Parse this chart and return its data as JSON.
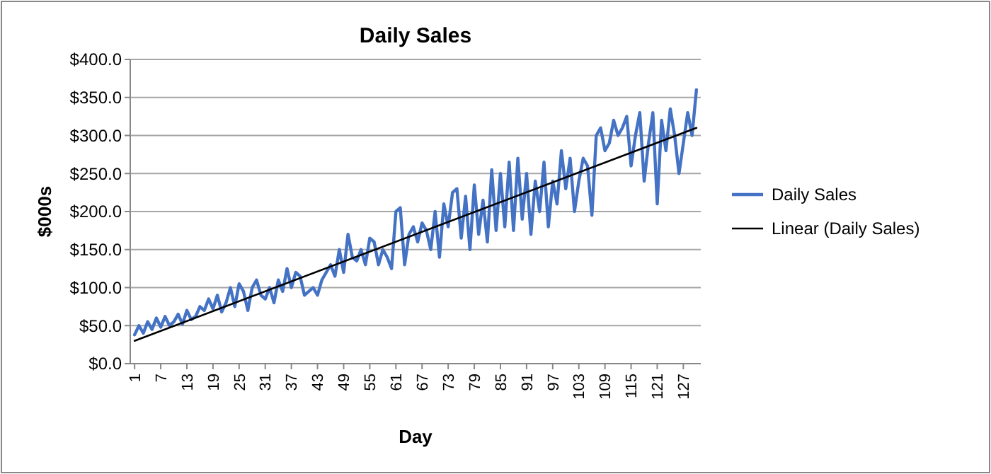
{
  "chart_data": {
    "type": "line",
    "title": "Daily Sales",
    "xlabel": "Day",
    "ylabel": "$000s",
    "x": [
      1,
      2,
      3,
      4,
      5,
      6,
      7,
      8,
      9,
      10,
      11,
      12,
      13,
      14,
      15,
      16,
      17,
      18,
      19,
      20,
      21,
      22,
      23,
      24,
      25,
      26,
      27,
      28,
      29,
      30,
      31,
      32,
      33,
      34,
      35,
      36,
      37,
      38,
      39,
      40,
      41,
      42,
      43,
      44,
      45,
      46,
      47,
      48,
      49,
      50,
      51,
      52,
      53,
      54,
      55,
      56,
      57,
      58,
      59,
      60,
      61,
      62,
      63,
      64,
      65,
      66,
      67,
      68,
      69,
      70,
      71,
      72,
      73,
      74,
      75,
      76,
      77,
      78,
      79,
      80,
      81,
      82,
      83,
      84,
      85,
      86,
      87,
      88,
      89,
      90,
      91,
      92,
      93,
      94,
      95,
      96,
      97,
      98,
      99,
      100,
      101,
      102,
      103,
      104,
      105,
      106,
      107,
      108,
      109,
      110,
      111,
      112,
      113,
      114,
      115,
      116,
      117,
      118,
      119,
      120,
      121,
      122,
      123,
      124,
      125,
      126,
      127,
      128,
      129,
      130
    ],
    "xlim": [
      0,
      131
    ],
    "xticks": [
      1,
      7,
      13,
      19,
      25,
      31,
      37,
      43,
      49,
      55,
      61,
      67,
      73,
      79,
      85,
      91,
      97,
      103,
      109,
      115,
      121,
      127
    ],
    "ylim": [
      0,
      400
    ],
    "yticks": [
      {
        "value": 0,
        "label": "$0.0"
      },
      {
        "value": 50,
        "label": "$50.0"
      },
      {
        "value": 100,
        "label": "$100.0"
      },
      {
        "value": 150,
        "label": "$150.0"
      },
      {
        "value": 200,
        "label": "$200.0"
      },
      {
        "value": 250,
        "label": "$250.0"
      },
      {
        "value": 300,
        "label": "$300.0"
      },
      {
        "value": 350,
        "label": "$350.0"
      },
      {
        "value": 400,
        "label": "$400.0"
      }
    ],
    "grid": "y",
    "legend": "right",
    "marker": "none",
    "series": [
      {
        "name": "Daily Sales",
        "color": "#4472c4",
        "values": [
          38,
          50,
          40,
          55,
          45,
          60,
          48,
          62,
          50,
          55,
          65,
          52,
          70,
          58,
          62,
          75,
          70,
          85,
          72,
          90,
          68,
          80,
          100,
          75,
          105,
          95,
          70,
          100,
          110,
          90,
          85,
          100,
          80,
          110,
          95,
          125,
          100,
          120,
          115,
          90,
          95,
          100,
          90,
          110,
          120,
          130,
          115,
          150,
          120,
          170,
          140,
          135,
          150,
          130,
          165,
          160,
          130,
          150,
          140,
          125,
          200,
          205,
          130,
          170,
          180,
          160,
          185,
          175,
          150,
          200,
          140,
          210,
          180,
          225,
          230,
          165,
          220,
          150,
          235,
          170,
          215,
          160,
          255,
          175,
          250,
          180,
          265,
          175,
          270,
          190,
          250,
          170,
          240,
          200,
          265,
          180,
          240,
          210,
          280,
          230,
          270,
          200,
          240,
          270,
          260,
          195,
          300,
          310,
          280,
          290,
          320,
          300,
          310,
          325,
          260,
          300,
          330,
          240,
          290,
          330,
          210,
          320,
          280,
          335,
          300,
          250,
          290,
          330,
          300,
          360
        ]
      },
      {
        "name": "Linear (Daily Sales)",
        "color": "#000000",
        "x": [
          1,
          130
        ],
        "values": [
          30,
          310
        ]
      }
    ]
  }
}
